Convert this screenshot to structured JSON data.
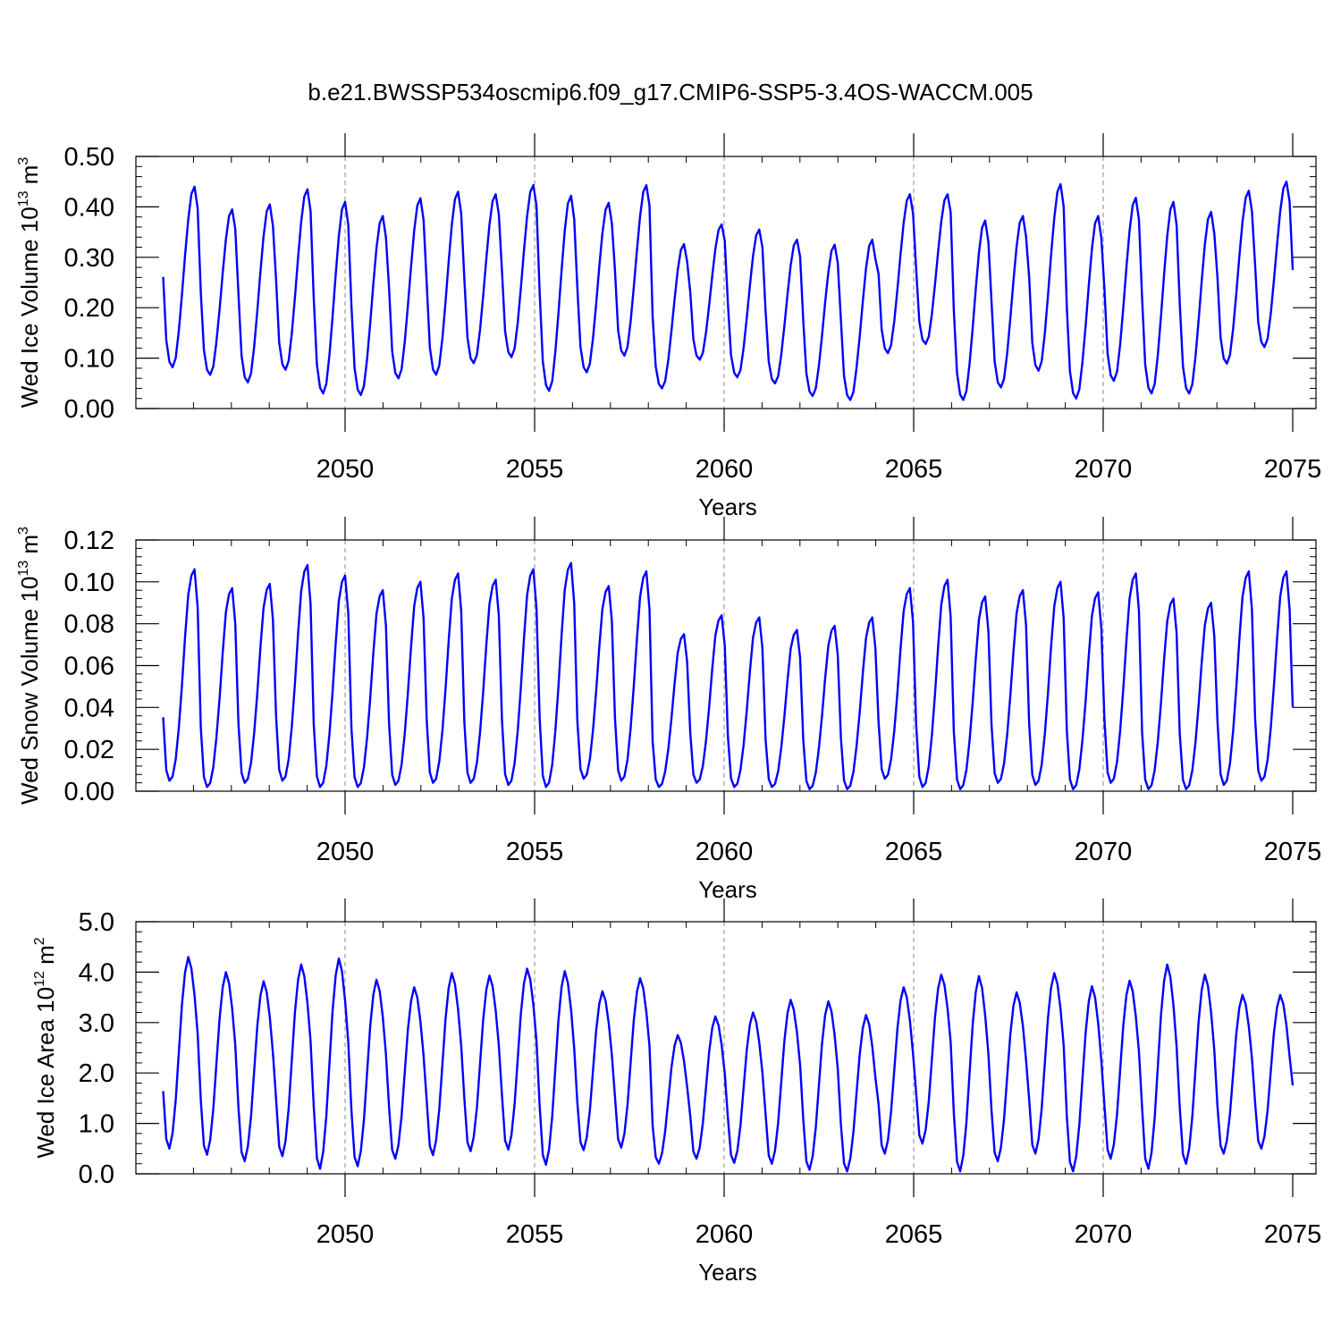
{
  "title": "b.e21.BWSSP534oscmip6.f09_g17.CMIP6-SSP5-3.4OS-WACCM.005",
  "colors": {
    "series": "#0000ff",
    "axis": "#000000",
    "refline": "#888888"
  },
  "chart_data": [
    {
      "type": "line",
      "panel_id": "ice-volume",
      "title": "",
      "xlabel": "Years",
      "ylabel": {
        "main": "Wed Ice Volume 10",
        "sup1": "13",
        "mid": " m",
        "sup2": "3"
      },
      "xlim": [
        2045.2,
        2075.0
      ],
      "ylim": [
        0.0,
        0.5
      ],
      "x_ticks": [
        "2050",
        "2055",
        "2060",
        "2065",
        "2070",
        "2075"
      ],
      "x_tick_values": [
        2050,
        2055,
        2060,
        2065,
        2070,
        2075
      ],
      "y_ticks": [
        "0.00",
        "0.10",
        "0.20",
        "0.30",
        "0.40",
        "0.50"
      ],
      "y_tick_values": [
        0.0,
        0.1,
        0.2,
        0.3,
        0.4,
        0.5
      ],
      "reference_lines_x": [
        2050,
        2055,
        2060,
        2065,
        2070
      ],
      "start_year": 2045.2,
      "step": 0.0833,
      "seasonal_shape": [
        0.5,
        0.15,
        0.03,
        0.0,
        0.05,
        0.2,
        0.4,
        0.62,
        0.82,
        0.96,
        1.0,
        0.88
      ],
      "years": [
        2045,
        2046,
        2047,
        2048,
        2049,
        2050,
        2051,
        2052,
        2053,
        2054,
        2055,
        2056,
        2057,
        2058,
        2059,
        2060,
        2061,
        2062,
        2063,
        2064,
        2065,
        2066,
        2067,
        2068,
        2069,
        2070,
        2071,
        2072,
        2073,
        2074
      ],
      "annual_max": [
        0.44,
        0.395,
        0.405,
        0.435,
        0.41,
        0.382,
        0.417,
        0.43,
        0.425,
        0.443,
        0.422,
        0.408,
        0.443,
        0.326,
        0.365,
        0.355,
        0.335,
        0.325,
        0.335,
        0.425,
        0.425,
        0.373,
        0.382,
        0.445,
        0.382,
        0.418,
        0.41,
        0.39,
        0.432,
        0.45
      ],
      "annual_min": [
        0.082,
        0.067,
        0.052,
        0.077,
        0.03,
        0.027,
        0.06,
        0.067,
        0.09,
        0.102,
        0.035,
        0.072,
        0.105,
        0.04,
        0.097,
        0.062,
        0.05,
        0.025,
        0.017,
        0.11,
        0.128,
        0.017,
        0.042,
        0.075,
        0.02,
        0.055,
        0.03,
        0.03,
        0.089,
        0.122
      ],
      "final_value": 0.275
    },
    {
      "type": "line",
      "panel_id": "snow-volume",
      "title": "",
      "xlabel": "Years",
      "ylabel": {
        "main": "Wed Snow Volume 10",
        "sup1": "13",
        "mid": " m",
        "sup2": "3"
      },
      "xlim": [
        2045.2,
        2075.0
      ],
      "ylim": [
        0.0,
        0.12
      ],
      "x_ticks": [
        "2050",
        "2055",
        "2060",
        "2065",
        "2070",
        "2075"
      ],
      "x_tick_values": [
        2050,
        2055,
        2060,
        2065,
        2070,
        2075
      ],
      "y_ticks": [
        "0.00",
        "0.02",
        "0.04",
        "0.06",
        "0.08",
        "0.10",
        "0.12"
      ],
      "y_tick_values": [
        0.0,
        0.02,
        0.04,
        0.06,
        0.08,
        0.1,
        0.12
      ],
      "reference_lines_x": [
        2050,
        2055,
        2060,
        2065,
        2070
      ],
      "start_year": 2045.2,
      "step": 0.0833,
      "seasonal_shape": [
        0.3,
        0.05,
        0.0,
        0.02,
        0.1,
        0.25,
        0.45,
        0.68,
        0.88,
        0.97,
        1.0,
        0.82
      ],
      "years": [
        2045,
        2046,
        2047,
        2048,
        2049,
        2050,
        2051,
        2052,
        2053,
        2054,
        2055,
        2056,
        2057,
        2058,
        2059,
        2060,
        2061,
        2062,
        2063,
        2064,
        2065,
        2066,
        2067,
        2068,
        2069,
        2070,
        2071,
        2072,
        2073,
        2074
      ],
      "annual_max": [
        0.106,
        0.097,
        0.099,
        0.108,
        0.103,
        0.096,
        0.1,
        0.104,
        0.101,
        0.106,
        0.109,
        0.098,
        0.105,
        0.075,
        0.084,
        0.083,
        0.077,
        0.079,
        0.083,
        0.097,
        0.101,
        0.093,
        0.096,
        0.1,
        0.095,
        0.104,
        0.092,
        0.09,
        0.105,
        0.105
      ],
      "annual_min": [
        0.005,
        0.002,
        0.004,
        0.005,
        0.002,
        0.002,
        0.003,
        0.004,
        0.004,
        0.003,
        0.002,
        0.006,
        0.005,
        0.002,
        0.004,
        0.002,
        0.002,
        0.001,
        0.001,
        0.006,
        0.002,
        0.001,
        0.004,
        0.003,
        0.001,
        0.004,
        0.001,
        0.001,
        0.003,
        0.005
      ],
      "final_value": 0.04
    },
    {
      "type": "line",
      "panel_id": "ice-area",
      "title": "",
      "xlabel": "Years",
      "ylabel": {
        "main": "Wed Ice Area 10",
        "sup1": "12",
        "mid": " m",
        "sup2": "2"
      },
      "xlim": [
        2045.2,
        2075.0
      ],
      "ylim": [
        0.0,
        5.0
      ],
      "x_ticks": [
        "2050",
        "2055",
        "2060",
        "2065",
        "2070",
        "2075"
      ],
      "x_tick_values": [
        2050,
        2055,
        2060,
        2065,
        2070,
        2075
      ],
      "y_ticks": [
        "0.0",
        "1.0",
        "2.0",
        "3.0",
        "4.0",
        "5.0"
      ],
      "y_tick_values": [
        0.0,
        1.0,
        2.0,
        3.0,
        4.0,
        5.0
      ],
      "reference_lines_x": [
        2050,
        2055,
        2060,
        2065,
        2070
      ],
      "start_year": 2045.2,
      "step": 0.0833,
      "seasonal_shape": [
        0.3,
        0.05,
        0.0,
        0.08,
        0.25,
        0.5,
        0.75,
        0.92,
        1.0,
        0.94,
        0.8,
        0.6
      ],
      "years": [
        2045,
        2046,
        2047,
        2048,
        2049,
        2050,
        2051,
        2052,
        2053,
        2054,
        2055,
        2056,
        2057,
        2058,
        2059,
        2060,
        2061,
        2062,
        2063,
        2064,
        2065,
        2066,
        2067,
        2068,
        2069,
        2070,
        2071,
        2072,
        2073,
        2074
      ],
      "annual_max": [
        4.3,
        4.0,
        3.82,
        4.15,
        4.27,
        3.85,
        3.7,
        3.98,
        3.93,
        4.07,
        4.02,
        3.62,
        3.88,
        2.75,
        3.12,
        3.2,
        3.45,
        3.42,
        3.15,
        3.7,
        3.95,
        3.92,
        3.6,
        3.98,
        3.72,
        3.83,
        4.15,
        3.95,
        3.55,
        3.55
      ],
      "annual_min": [
        0.5,
        0.38,
        0.25,
        0.35,
        0.1,
        0.15,
        0.3,
        0.37,
        0.45,
        0.48,
        0.18,
        0.47,
        0.52,
        0.2,
        0.3,
        0.22,
        0.2,
        0.08,
        0.05,
        0.4,
        0.6,
        0.05,
        0.25,
        0.4,
        0.05,
        0.3,
        0.1,
        0.2,
        0.4,
        0.5
      ],
      "final_value": 1.75
    }
  ]
}
